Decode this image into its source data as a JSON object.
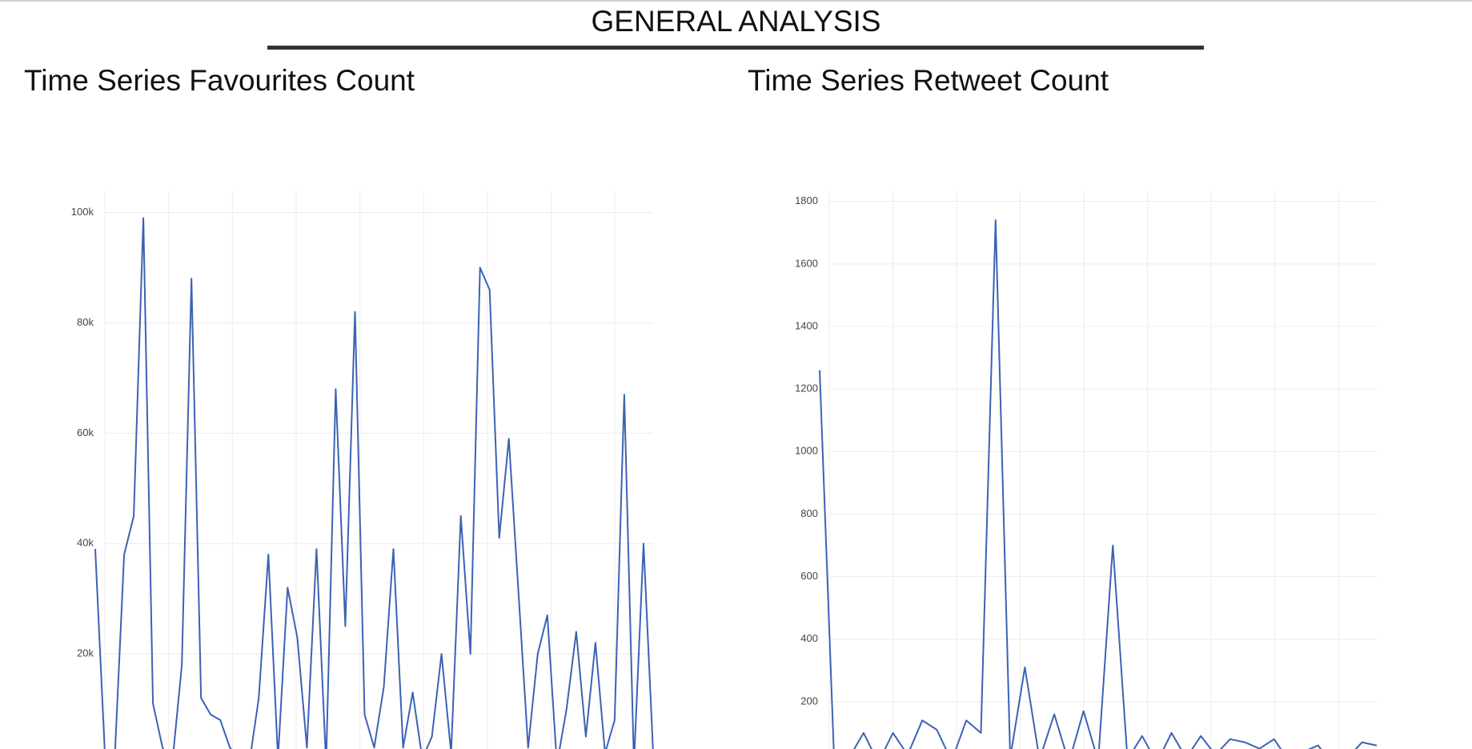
{
  "header": {
    "title": "GENERAL ANALYSIS"
  },
  "chart_data": [
    {
      "type": "line",
      "title": "Time Series Favourites Count",
      "color": "#3b62b5",
      "values": [
        39000,
        2000,
        0,
        38000,
        45000,
        99000,
        11000,
        3000,
        0,
        18000,
        88000,
        12000,
        9000,
        8000,
        3000,
        1000,
        0,
        12000,
        38000,
        1000,
        32000,
        23000,
        3000,
        39000,
        0,
        68000,
        25000,
        82000,
        9000,
        3000,
        14000,
        39000,
        3000,
        13000,
        1000,
        5000,
        20000,
        2000,
        45000,
        20000,
        90000,
        86000,
        41000,
        59000,
        31000,
        3000,
        20000,
        27000,
        0,
        10000,
        24000,
        5000,
        22000,
        2000,
        8000,
        67000,
        0,
        40000,
        2000
      ],
      "ylim": [
        0,
        104000
      ],
      "yticks": [
        {
          "value": 20000,
          "label": "20k"
        },
        {
          "value": 40000,
          "label": "40k"
        },
        {
          "value": 60000,
          "label": "60k"
        },
        {
          "value": 80000,
          "label": "80k"
        },
        {
          "value": 100000,
          "label": "100k"
        }
      ],
      "grid": true
    },
    {
      "type": "line",
      "title": "Time Series Retweet Count",
      "color": "#3b62b5",
      "values": [
        1260,
        0,
        20,
        100,
        5,
        100,
        30,
        140,
        110,
        10,
        140,
        100,
        1740,
        20,
        310,
        15,
        160,
        5,
        170,
        10,
        700,
        15,
        90,
        5,
        100,
        20,
        90,
        30,
        80,
        70,
        50,
        80,
        10,
        40,
        60,
        0,
        20,
        70,
        60
      ],
      "ylim": [
        0,
        1835
      ],
      "yticks": [
        200,
        400,
        600,
        800,
        1000,
        1200,
        1400,
        1600,
        1800
      ],
      "grid": true
    }
  ]
}
